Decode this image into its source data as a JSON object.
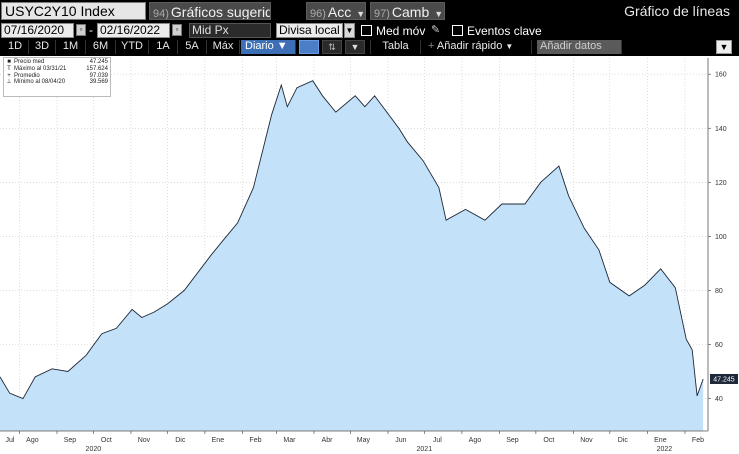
{
  "toolbar": {
    "ticker": "USYC2Y10 Index",
    "menu_suggested": {
      "num": "94)",
      "label": "Gráficos sugeridos"
    },
    "menu_acc": {
      "num": "96)",
      "label": "Acc"
    },
    "menu_camb": {
      "num": "97)",
      "label": "Camb"
    },
    "chart_type": "Gráfico de líneas"
  },
  "controls": {
    "start_date": "07/16/2020",
    "date_sep": "-",
    "end_date": "02/16/2022",
    "field": "Mid Px",
    "currency": "Divisa local",
    "moving_avg_label": "Med móv",
    "key_events_label": "Eventos clave",
    "pencil_icon": "pencil-icon"
  },
  "timeframes": {
    "items": [
      "1D",
      "3D",
      "1M",
      "6M",
      "YTD",
      "1A",
      "5A",
      "Máx"
    ],
    "period": "Diario",
    "table_label": "Tabla",
    "quick_add_label": "Añadir rápido",
    "add_data_label": "Añadir datos"
  },
  "legend": {
    "rows": [
      {
        "symbol": "■",
        "label": "Precio med",
        "value": "47.245"
      },
      {
        "symbol": "T",
        "label": "Máximo al 03/31/21",
        "value": "157.624"
      },
      {
        "symbol": "+",
        "label": "Promedio",
        "value": "97.039"
      },
      {
        "symbol": "⊥",
        "label": "Mínimo al 08/04/20",
        "value": "39.569"
      }
    ]
  },
  "colors": {
    "line": "#1e2838",
    "fill": "#c3e1f8",
    "last_value_bg": "#1e2838",
    "active_tab": "#3d6fb6"
  },
  "chart_data": {
    "type": "area",
    "series": [
      {
        "name": "Precio med",
        "points": [
          [
            "2020-07-16",
            48
          ],
          [
            "2020-07-24",
            42
          ],
          [
            "2020-08-04",
            40
          ],
          [
            "2020-08-14",
            48
          ],
          [
            "2020-08-28",
            51
          ],
          [
            "2020-09-10",
            50
          ],
          [
            "2020-09-25",
            56
          ],
          [
            "2020-10-08",
            64
          ],
          [
            "2020-10-20",
            66
          ],
          [
            "2020-11-02",
            73
          ],
          [
            "2020-11-10",
            70
          ],
          [
            "2020-11-20",
            72
          ],
          [
            "2020-12-01",
            75
          ],
          [
            "2020-12-15",
            80
          ],
          [
            "2021-01-06",
            93
          ],
          [
            "2021-01-15",
            98
          ],
          [
            "2021-01-28",
            105
          ],
          [
            "2021-02-10",
            118
          ],
          [
            "2021-02-25",
            145
          ],
          [
            "2021-03-05",
            156
          ],
          [
            "2021-03-10",
            148
          ],
          [
            "2021-03-18",
            155
          ],
          [
            "2021-03-31",
            157.6
          ],
          [
            "2021-04-08",
            152
          ],
          [
            "2021-04-19",
            146
          ],
          [
            "2021-05-05",
            152
          ],
          [
            "2021-05-13",
            148
          ],
          [
            "2021-05-21",
            152
          ],
          [
            "2021-06-10",
            140
          ],
          [
            "2021-06-17",
            135
          ],
          [
            "2021-06-30",
            128
          ],
          [
            "2021-07-13",
            118
          ],
          [
            "2021-07-19",
            106
          ],
          [
            "2021-08-04",
            110
          ],
          [
            "2021-08-20",
            106
          ],
          [
            "2021-09-03",
            112
          ],
          [
            "2021-09-22",
            112
          ],
          [
            "2021-10-05",
            120
          ],
          [
            "2021-10-20",
            126
          ],
          [
            "2021-10-28",
            115
          ],
          [
            "2021-11-10",
            103
          ],
          [
            "2021-11-22",
            95
          ],
          [
            "2021-12-01",
            83
          ],
          [
            "2021-12-17",
            78
          ],
          [
            "2021-12-30",
            82
          ],
          [
            "2022-01-12",
            88
          ],
          [
            "2022-01-24",
            81
          ],
          [
            "2022-02-02",
            62
          ],
          [
            "2022-02-07",
            58
          ],
          [
            "2022-02-11",
            41
          ],
          [
            "2022-02-16",
            47.245
          ]
        ]
      }
    ],
    "x_ticks": [
      "Jul",
      "Ago",
      "Sep",
      "Oct",
      "Nov",
      "Dic",
      "Ene",
      "Feb",
      "Mar",
      "Abr",
      "May",
      "Jun",
      "Jul",
      "Ago",
      "Sep",
      "Oct",
      "Nov",
      "Dic",
      "Ene",
      "Feb"
    ],
    "x_tick_dates": [
      "2020-07-01",
      "2020-08-01",
      "2020-09-01",
      "2020-10-01",
      "2020-11-01",
      "2020-12-01",
      "2021-01-01",
      "2021-02-01",
      "2021-03-01",
      "2021-04-01",
      "2021-05-01",
      "2021-06-01",
      "2021-07-01",
      "2021-08-01",
      "2021-09-01",
      "2021-10-01",
      "2021-11-01",
      "2021-12-01",
      "2022-01-01",
      "2022-02-01"
    ],
    "year_labels": [
      {
        "date": "2020-10-01",
        "label": "2020"
      },
      {
        "date": "2021-07-01",
        "label": "2021"
      },
      {
        "date": "2022-01-15",
        "label": "2022"
      }
    ],
    "y_ticks": [
      40,
      60,
      80,
      100,
      120,
      140,
      160
    ],
    "xlim": [
      "2020-07-16",
      "2022-02-20"
    ],
    "ylim": [
      28,
      166
    ],
    "last_value": "47.245",
    "grid": true,
    "legend": "top-left"
  }
}
